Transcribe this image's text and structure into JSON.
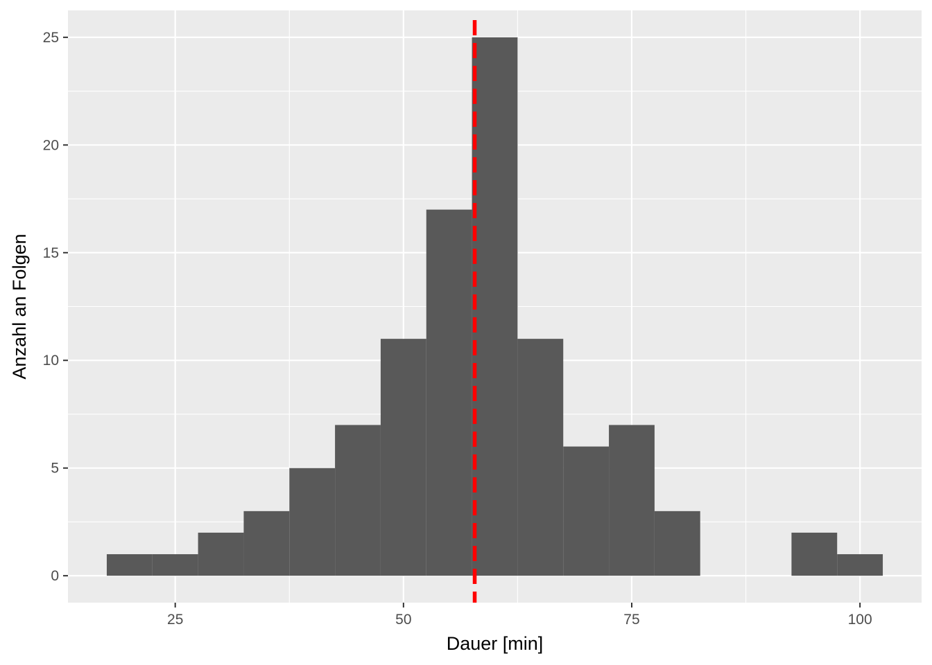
{
  "chart_data": {
    "type": "bar",
    "subtype": "histogram",
    "xlabel": "Dauer [min]",
    "ylabel": "Anzahl an Folgen",
    "binwidth": 5,
    "bins": [
      {
        "start": 17.5,
        "end": 22.5,
        "count": 1
      },
      {
        "start": 22.5,
        "end": 27.5,
        "count": 1
      },
      {
        "start": 27.5,
        "end": 32.5,
        "count": 2
      },
      {
        "start": 32.5,
        "end": 37.5,
        "count": 3
      },
      {
        "start": 37.5,
        "end": 42.5,
        "count": 5
      },
      {
        "start": 42.5,
        "end": 47.5,
        "count": 7
      },
      {
        "start": 47.5,
        "end": 52.5,
        "count": 11
      },
      {
        "start": 52.5,
        "end": 57.5,
        "count": 17
      },
      {
        "start": 57.5,
        "end": 62.5,
        "count": 25
      },
      {
        "start": 62.5,
        "end": 67.5,
        "count": 11
      },
      {
        "start": 67.5,
        "end": 72.5,
        "count": 6
      },
      {
        "start": 72.5,
        "end": 77.5,
        "count": 7
      },
      {
        "start": 77.5,
        "end": 82.5,
        "count": 3
      },
      {
        "start": 82.5,
        "end": 87.5,
        "count": 0
      },
      {
        "start": 87.5,
        "end": 92.5,
        "count": 0
      },
      {
        "start": 92.5,
        "end": 97.5,
        "count": 2
      },
      {
        "start": 97.5,
        "end": 102.5,
        "count": 1
      }
    ],
    "reference_line": {
      "x": 57.8,
      "style": "dashed",
      "color": "#ff0000"
    },
    "xlim": [
      13.25,
      106.75
    ],
    "ylim": [
      -1.25,
      26.25
    ],
    "x_ticks": [
      25,
      50,
      75,
      100
    ],
    "x_minor_ticks": [
      37.5,
      62.5,
      87.5
    ],
    "y_ticks": [
      0,
      5,
      10,
      15,
      20,
      25
    ],
    "y_minor_ticks": [
      2.5,
      7.5,
      12.5,
      17.5,
      22.5
    ],
    "grid": true,
    "colors": {
      "bar": "#595959",
      "panel": "#ebebeb",
      "grid": "#ffffff",
      "reference_line": "#ff0000"
    }
  }
}
